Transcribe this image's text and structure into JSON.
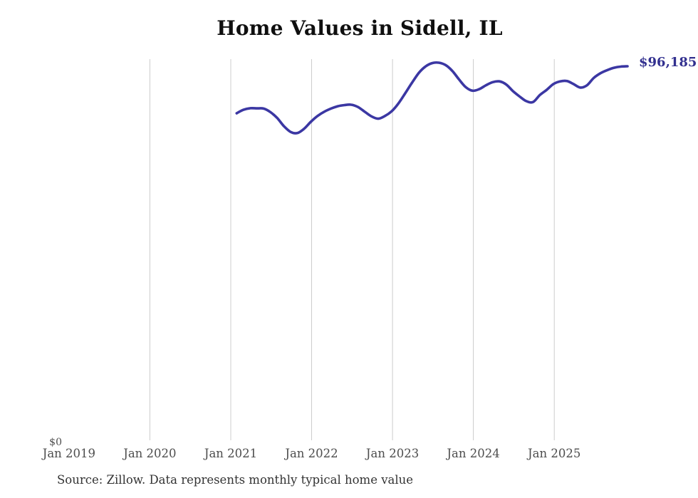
{
  "chart_data": {
    "type": "line",
    "title": "Home Values in Sidell, IL",
    "series_name": "Monthly typical home value",
    "unit": "USD",
    "latest_value": 96185,
    "end_label": "$96,185",
    "x": [
      "2021-02",
      "2021-03",
      "2021-04",
      "2021-05",
      "2021-06",
      "2021-07",
      "2021-08",
      "2021-09",
      "2021-10",
      "2021-11",
      "2021-12",
      "2022-01",
      "2022-02",
      "2022-03",
      "2022-04",
      "2022-05",
      "2022-06",
      "2022-07",
      "2022-08",
      "2022-09",
      "2022-10",
      "2022-11",
      "2022-12",
      "2023-01",
      "2023-02",
      "2023-03",
      "2023-04",
      "2023-05",
      "2023-06",
      "2023-07",
      "2023-08",
      "2023-09",
      "2023-10",
      "2023-11",
      "2023-12",
      "2024-01",
      "2024-02",
      "2024-03",
      "2024-04",
      "2024-05",
      "2024-06",
      "2024-07",
      "2024-08",
      "2024-09",
      "2024-10",
      "2024-11",
      "2024-12",
      "2025-01",
      "2025-02",
      "2025-03",
      "2025-04",
      "2025-05",
      "2025-06",
      "2025-07",
      "2025-08",
      "2025-09",
      "2025-10",
      "2025-11",
      "2025-12"
    ],
    "values": [
      84100,
      85000,
      85400,
      85350,
      85300,
      84400,
      82900,
      80800,
      79300,
      79000,
      80100,
      81900,
      83400,
      84500,
      85300,
      85900,
      86200,
      86300,
      85700,
      84500,
      83300,
      82700,
      83400,
      84600,
      86600,
      89200,
      91900,
      94400,
      96100,
      97000,
      97100,
      96500,
      95000,
      92800,
      90800,
      89900,
      90300,
      91300,
      92100,
      92300,
      91500,
      89800,
      88400,
      87200,
      87000,
      88800,
      90100,
      91600,
      92300,
      92400,
      91600,
      90700,
      91300,
      93200,
      94400,
      95200,
      95800,
      96100,
      96185
    ],
    "y_axis": {
      "zero_label": "$0",
      "ylim": [
        0,
        97500
      ],
      "visible_ticks": [
        "$0"
      ]
    },
    "x_axis": {
      "tick_labels": [
        "Jan 2019",
        "Jan 2020",
        "Jan 2021",
        "Jan 2022",
        "Jan 2023",
        "Jan 2024",
        "Jan 2025"
      ],
      "gridlines_for": [
        "Jan 2020",
        "Jan 2021",
        "Jan 2022",
        "Jan 2023",
        "Jan 2024",
        "Jan 2025"
      ]
    },
    "legend": "none",
    "grid": "vertical-only"
  },
  "source_note": "Source: Zillow. Data represents monthly typical home value",
  "colors": {
    "line": "#3b37a3",
    "value_label": "#32308f",
    "gridline": "#cccccc",
    "axis_label": "#4d4d4d",
    "title": "#0f0f0f",
    "source_text": "#333333",
    "background": "#ffffff"
  }
}
